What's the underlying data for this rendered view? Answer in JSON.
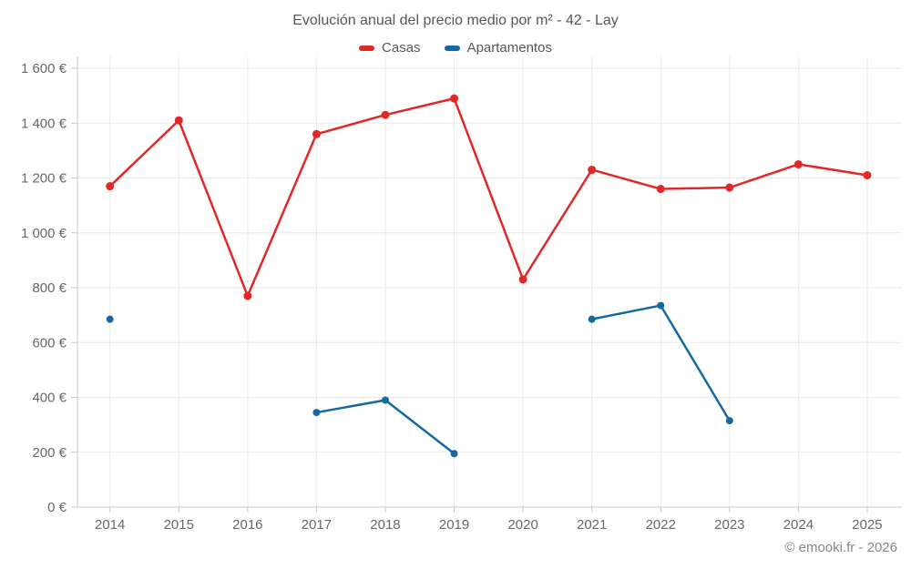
{
  "chart_data": {
    "type": "line",
    "title": "Evolución anual del precio medio por m² - 42 - Lay",
    "footer": "© emooki.fr - 2026",
    "categories": [
      "2014",
      "2015",
      "2016",
      "2017",
      "2018",
      "2019",
      "2020",
      "2021",
      "2022",
      "2023",
      "2024",
      "2025"
    ],
    "xlabel": "",
    "ylabel": "",
    "ylim": [
      0,
      1600
    ],
    "grid": true,
    "legend_position": "top",
    "y_tick_values": [
      0,
      200,
      400,
      600,
      800,
      1000,
      1200,
      1400,
      1600
    ],
    "y_tick_labels": [
      "0 €",
      "200 €",
      "400 €",
      "600 €",
      "800 €",
      "1 000 €",
      "1 200 €",
      "1 400 €",
      "1 600 €"
    ],
    "series": [
      {
        "name": "Casas",
        "color": "#e02828",
        "marker_radius": 4.5,
        "values": [
          1170,
          1410,
          770,
          1360,
          1430,
          1490,
          830,
          1230,
          1160,
          1165,
          1250,
          1210
        ]
      },
      {
        "name": "Apartamentos",
        "color": "#1569a0",
        "marker_radius": 4,
        "values": [
          685,
          null,
          null,
          345,
          390,
          195,
          null,
          685,
          735,
          315,
          null,
          null
        ]
      }
    ],
    "colors": {
      "gridline": "#e9eaeb",
      "axis_line": "#c7c9cb",
      "tick_text": "#66686c",
      "title_text": "#55575b",
      "footer_text": "#85878a"
    }
  }
}
